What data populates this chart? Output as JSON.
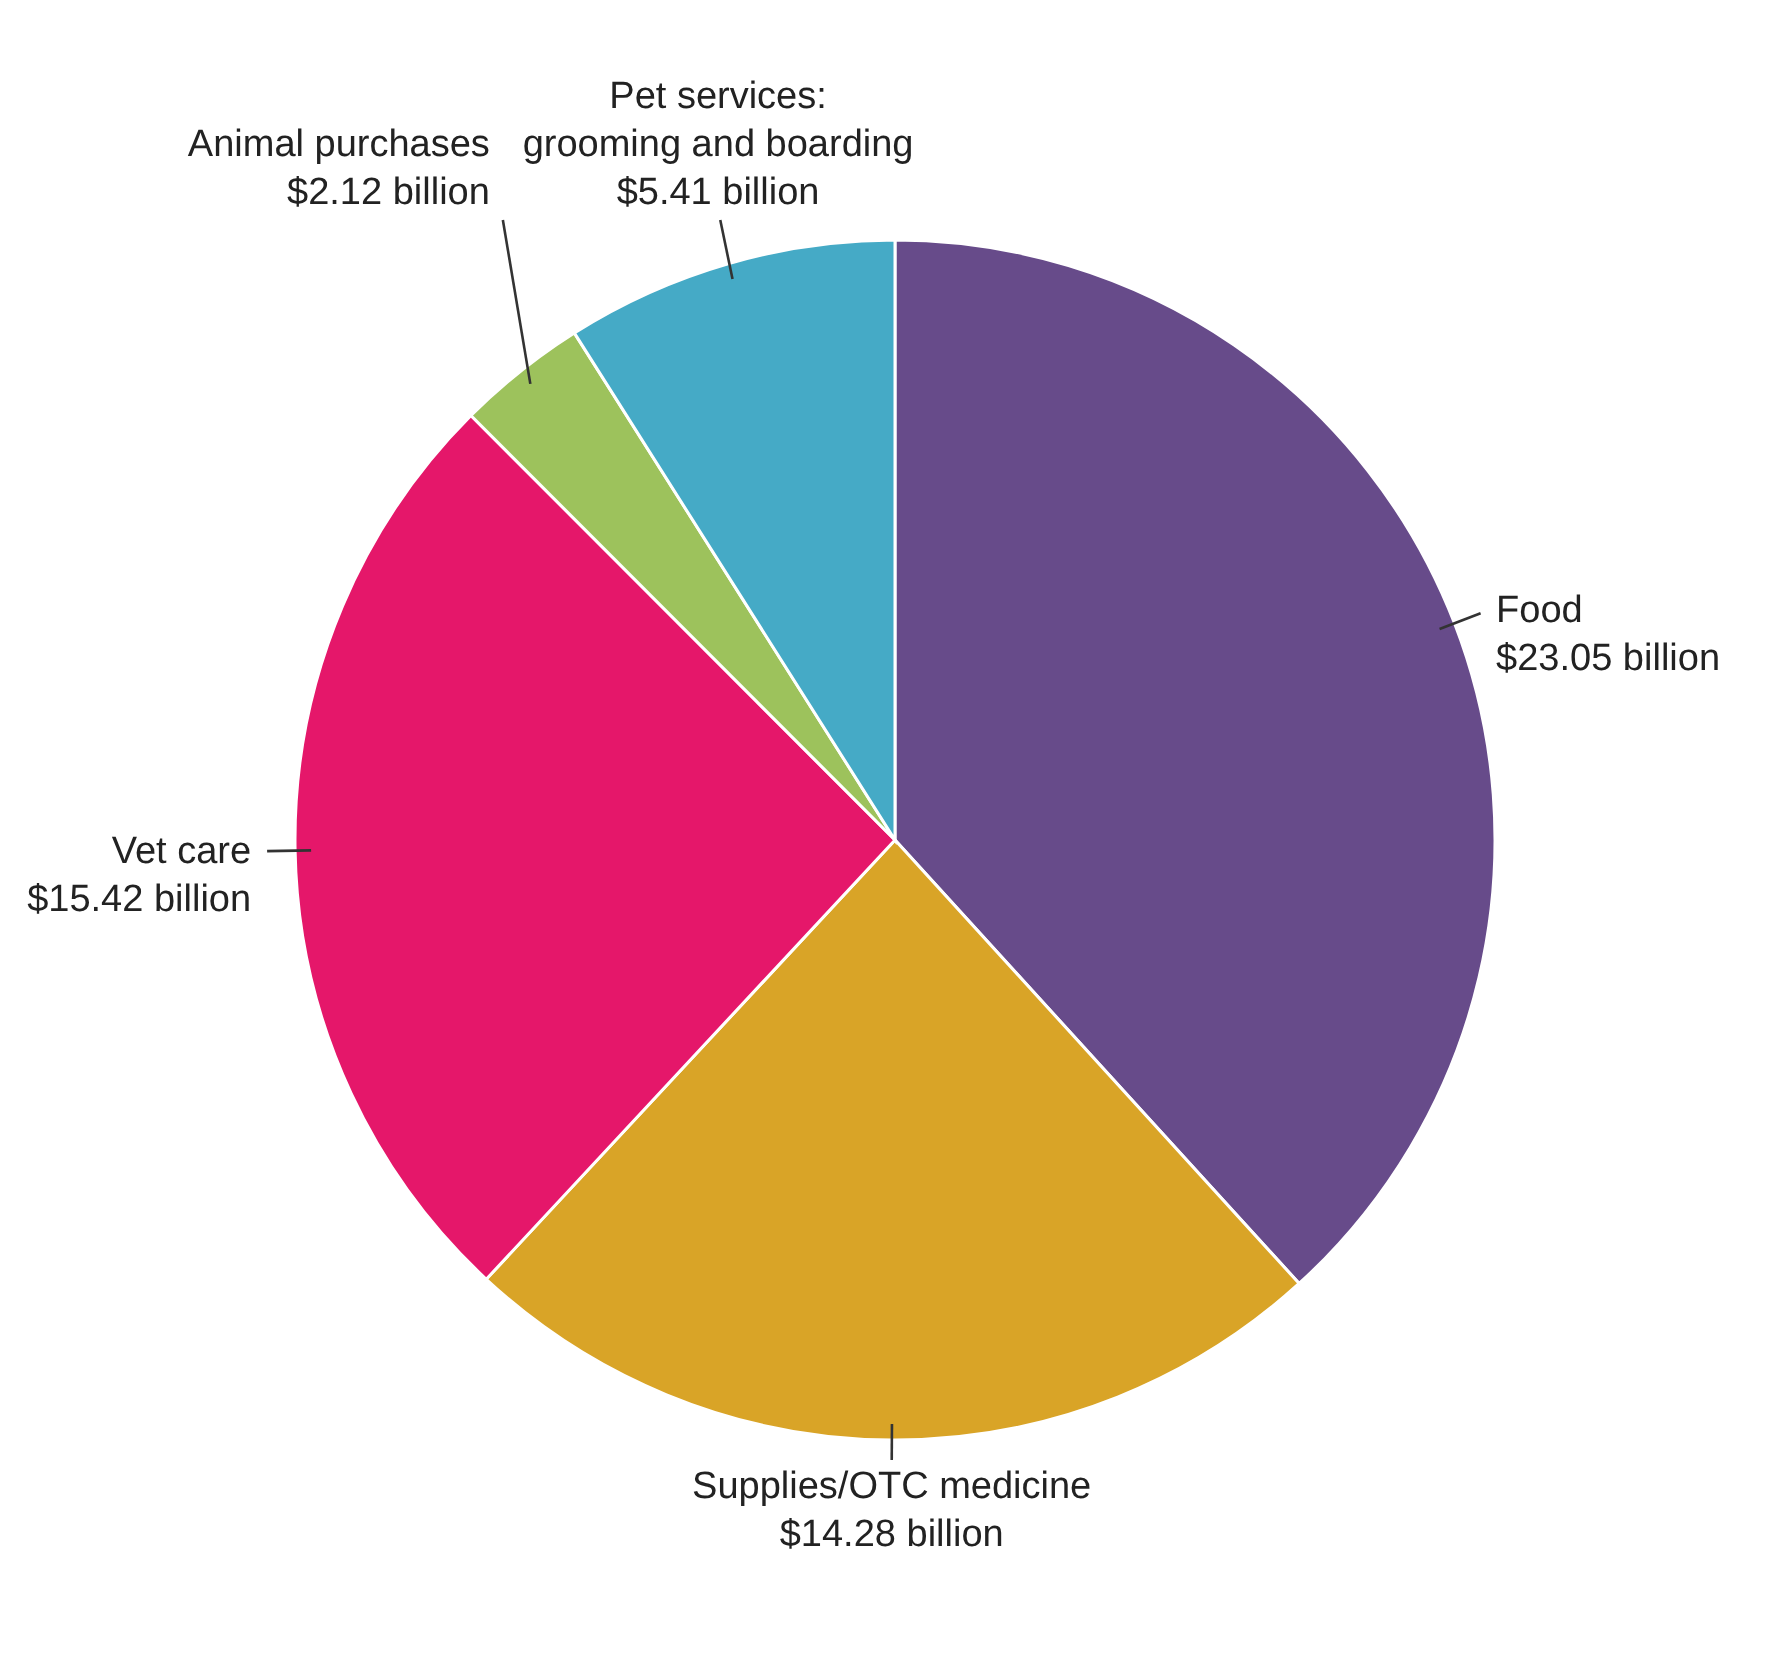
{
  "chart_data": {
    "type": "pie",
    "categories": [
      "Food",
      "Supplies/OTC medicine",
      "Vet care",
      "Animal purchases",
      "Pet services: grooming and boarding"
    ],
    "values": [
      23.05,
      14.28,
      15.42,
      2.12,
      5.41
    ],
    "colors": [
      "#674b8a",
      "#d9a427",
      "#e5176a",
      "#9dc25c",
      "#45aac6"
    ],
    "value_labels": [
      "$23.05 billion",
      "$14.28 billion",
      "$15.42 billion",
      "$2.12 billion",
      "$5.41 billion"
    ]
  }
}
